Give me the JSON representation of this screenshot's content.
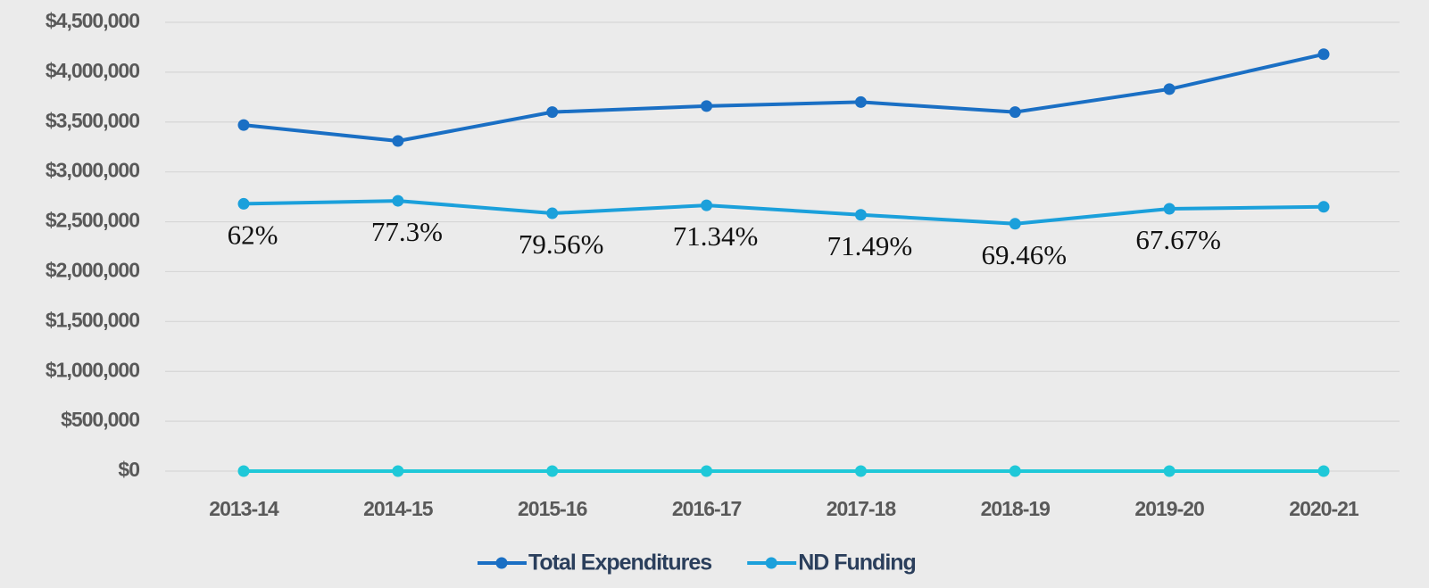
{
  "chart_data": {
    "type": "line",
    "categories": [
      "2013-14",
      "2014-15",
      "2015-16",
      "2016-17",
      "2017-18",
      "2018-19",
      "2019-20",
      "2020-21"
    ],
    "series": [
      {
        "name": "Total Expenditures",
        "color": "#1a6fc4",
        "values": [
          3470000,
          3310000,
          3600000,
          3660000,
          3700000,
          3600000,
          3830000,
          4180000
        ]
      },
      {
        "name": "ND Funding",
        "color": "#1ba0db",
        "values": [
          2680000,
          2710000,
          2585000,
          2665000,
          2570000,
          2480000,
          2630000,
          2650000
        ]
      },
      {
        "color": "#1fc8d8",
        "values": [
          0,
          0,
          0,
          0,
          0,
          0,
          0,
          0
        ]
      }
    ],
    "annotations": [
      "62%",
      "77.3%",
      "79.56%",
      "71.34%",
      "71.49%",
      "69.46%",
      "67.67%",
      null
    ],
    "ylim": [
      0,
      4500000
    ],
    "yticks": [
      {
        "value": 0,
        "label": "$0"
      },
      {
        "value": 500000,
        "label": "$500,000"
      },
      {
        "value": 1000000,
        "label": "$1,000,000"
      },
      {
        "value": 1500000,
        "label": "$1,500,000"
      },
      {
        "value": 2000000,
        "label": "$2,000,000"
      },
      {
        "value": 2500000,
        "label": "$2,500,000"
      },
      {
        "value": 3000000,
        "label": "$3,000,000"
      },
      {
        "value": 3500000,
        "label": "$3,500,000"
      },
      {
        "value": 4000000,
        "label": "$4,000,000"
      },
      {
        "value": 4500000,
        "label": "$4,500,000"
      }
    ],
    "grid": true
  }
}
